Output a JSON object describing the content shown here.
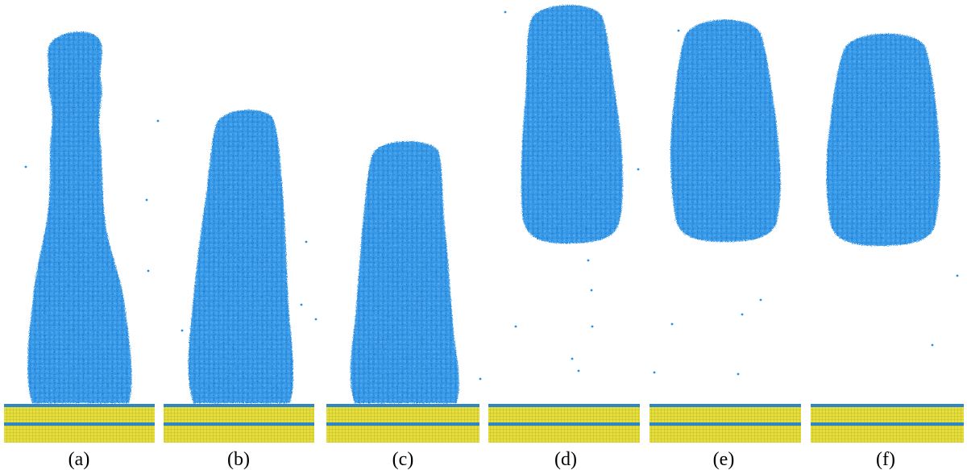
{
  "figure": {
    "panels": [
      {
        "id": "a",
        "label": "(a)",
        "state": "attached"
      },
      {
        "id": "b",
        "label": "(b)",
        "state": "attached"
      },
      {
        "id": "c",
        "label": "(c)",
        "state": "attached"
      },
      {
        "id": "d",
        "label": "(d)",
        "state": "detached"
      },
      {
        "id": "e",
        "label": "(e)",
        "state": "detached"
      },
      {
        "id": "f",
        "label": "(f)",
        "state": "detached"
      }
    ],
    "colors": {
      "droplet": "#2b8fe0",
      "substrate": "#e6de3c",
      "substrate_grid": "#a9a31d",
      "interface_layer": "#2f86c4",
      "background": "#ffffff"
    }
  }
}
